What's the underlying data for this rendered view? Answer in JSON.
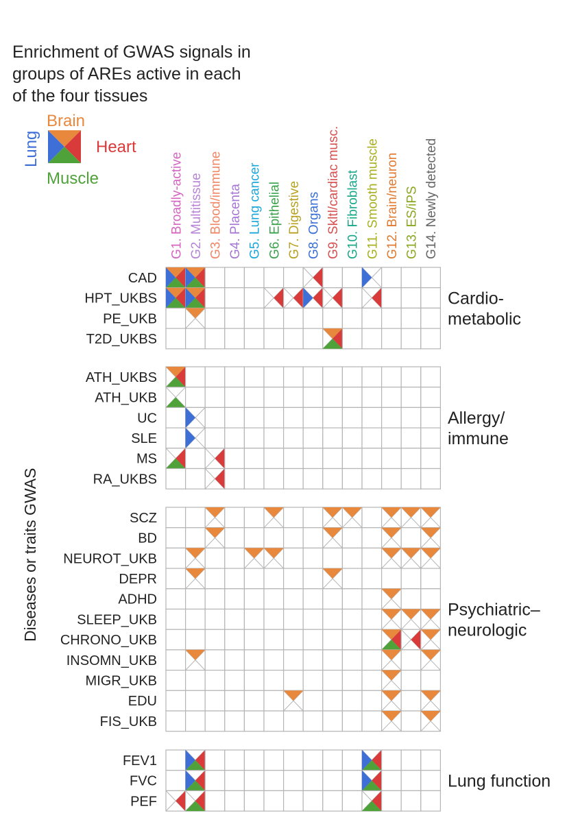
{
  "chart_data": {
    "type": "heatmap",
    "title": [
      "Enrichment of GWAS signals in",
      "groups of AREs active in each",
      "of the four tissues"
    ],
    "ylabel": "Diseases or traits GWAS",
    "legend": {
      "Lung": {
        "label": "Lung",
        "color": "#3d6fd6"
      },
      "Brain": {
        "label": "Brain",
        "color": "#e8883d"
      },
      "Heart": {
        "label": "Heart",
        "color": "#d93a3a"
      },
      "Muscle": {
        "label": "Muscle",
        "color": "#4fa23a"
      }
    },
    "columns": [
      {
        "label": "G1. Broadly-active",
        "color": "#d466c2"
      },
      {
        "label": "G2. Multitissue",
        "color": "#b884d8"
      },
      {
        "label": "G3. Blood/immune",
        "color": "#ee8866"
      },
      {
        "label": "G4. Placenta",
        "color": "#a676d6"
      },
      {
        "label": "G5. Lung cancer",
        "color": "#1aa7dc"
      },
      {
        "label": "G6. Epithelial",
        "color": "#3aa34a"
      },
      {
        "label": "G7. Digestive",
        "color": "#b8a020"
      },
      {
        "label": "G8. Organs",
        "color": "#3a6fd6"
      },
      {
        "label": "G9. Skltl/cardiac musc.",
        "color": "#d65050"
      },
      {
        "label": "G10. Fibroblast",
        "color": "#1aa88a"
      },
      {
        "label": "G11. Smooth muscle",
        "color": "#a8b020"
      },
      {
        "label": "G12. Brain/neuron",
        "color": "#e07a30"
      },
      {
        "label": "G13. ES/iPS",
        "color": "#8aa820"
      },
      {
        "label": "G14. Newly detected",
        "color": "#666666"
      }
    ],
    "groups": [
      {
        "label": [
          "Cardio-",
          "metabolic"
        ],
        "rows": [
          {
            "trait": "CAD",
            "cells": {
              "1": [
                "Lung",
                "Brain",
                "Heart",
                "Muscle"
              ],
              "2": [
                "Lung",
                "Brain",
                "Heart",
                "Muscle"
              ],
              "8": [
                "Heart"
              ],
              "11": [
                "Lung"
              ]
            }
          },
          {
            "trait": "HPT_UKBS",
            "cells": {
              "1": [
                "Lung",
                "Brain",
                "Heart",
                "Muscle"
              ],
              "2": [
                "Lung",
                "Brain",
                "Heart",
                "Muscle"
              ],
              "6": [
                "Heart"
              ],
              "7": [
                "Heart"
              ],
              "8": [
                "Lung",
                "Heart"
              ],
              "9": [
                "Heart"
              ],
              "11": [
                "Heart"
              ]
            }
          },
          {
            "trait": "PE_UKB",
            "cells": {
              "2": [
                "Brain"
              ]
            }
          },
          {
            "trait": "T2D_UKBS",
            "cells": {
              "9": [
                "Brain",
                "Heart",
                "Muscle"
              ]
            }
          }
        ]
      },
      {
        "label": [
          "Allergy/",
          "immune"
        ],
        "rows": [
          {
            "trait": "ATH_UKBS",
            "cells": {
              "1": [
                "Brain",
                "Heart",
                "Muscle"
              ]
            }
          },
          {
            "trait": "ATH_UKB",
            "cells": {
              "1": [
                "Muscle"
              ]
            }
          },
          {
            "trait": "UC",
            "cells": {
              "2": [
                "Lung"
              ]
            }
          },
          {
            "trait": "SLE",
            "cells": {
              "2": [
                "Lung"
              ]
            }
          },
          {
            "trait": "MS",
            "cells": {
              "1": [
                "Heart",
                "Muscle"
              ],
              "3": [
                "Heart"
              ]
            }
          },
          {
            "trait": "RA_UKBS",
            "cells": {
              "3": [
                "Heart"
              ]
            }
          }
        ]
      },
      {
        "label": [
          "Psychiatric–",
          "neurologic"
        ],
        "rows": [
          {
            "trait": "SCZ",
            "cells": {
              "3": [
                "Brain"
              ],
              "6": [
                "Brain"
              ],
              "9": [
                "Brain"
              ],
              "10": [
                "Brain"
              ],
              "12": [
                "Brain"
              ],
              "13": [
                "Brain"
              ],
              "14": [
                "Brain"
              ]
            }
          },
          {
            "trait": "BD",
            "cells": {
              "3": [
                "Brain"
              ],
              "9": [
                "Brain"
              ],
              "12": [
                "Brain"
              ],
              "14": [
                "Brain"
              ]
            }
          },
          {
            "trait": "NEUROT_UKB",
            "cells": {
              "2": [
                "Brain"
              ],
              "5": [
                "Brain"
              ],
              "6": [
                "Brain"
              ],
              "12": [
                "Brain"
              ],
              "13": [
                "Brain"
              ],
              "14": [
                "Brain"
              ]
            }
          },
          {
            "trait": "DEPR",
            "cells": {
              "2": [
                "Brain"
              ],
              "9": [
                "Brain"
              ]
            }
          },
          {
            "trait": "ADHD",
            "cells": {
              "12": [
                "Brain"
              ]
            }
          },
          {
            "trait": "SLEEP_UKB",
            "cells": {
              "12": [
                "Brain"
              ],
              "13": [
                "Brain"
              ],
              "14": [
                "Brain"
              ]
            }
          },
          {
            "trait": "CHRONO_UKB",
            "cells": {
              "12": [
                "Brain",
                "Heart",
                "Muscle"
              ],
              "13": [
                "Heart"
              ],
              "14": [
                "Brain"
              ]
            }
          },
          {
            "trait": "INSOMN_UKB",
            "cells": {
              "2": [
                "Brain"
              ],
              "12": [
                "Brain"
              ],
              "14": [
                "Brain"
              ]
            }
          },
          {
            "trait": "MIGR_UKB",
            "cells": {
              "12": [
                "Brain"
              ]
            }
          },
          {
            "trait": "EDU",
            "cells": {
              "7": [
                "Brain"
              ],
              "12": [
                "Brain"
              ],
              "14": [
                "Brain"
              ]
            }
          },
          {
            "trait": "FIS_UKB",
            "cells": {
              "12": [
                "Brain"
              ],
              "14": [
                "Brain"
              ]
            }
          }
        ]
      },
      {
        "label": [
          "Lung function"
        ],
        "rows": [
          {
            "trait": "FEV1",
            "cells": {
              "2": [
                "Lung",
                "Heart",
                "Muscle"
              ],
              "11": [
                "Lung",
                "Heart",
                "Muscle"
              ]
            }
          },
          {
            "trait": "FVC",
            "cells": {
              "2": [
                "Lung",
                "Heart",
                "Muscle"
              ],
              "11": [
                "Lung",
                "Heart",
                "Muscle"
              ]
            }
          },
          {
            "trait": "PEF",
            "cells": {
              "1": [
                "Heart"
              ],
              "2": [
                "Heart",
                "Muscle"
              ],
              "11": [
                "Heart",
                "Muscle"
              ]
            }
          }
        ]
      }
    ]
  }
}
